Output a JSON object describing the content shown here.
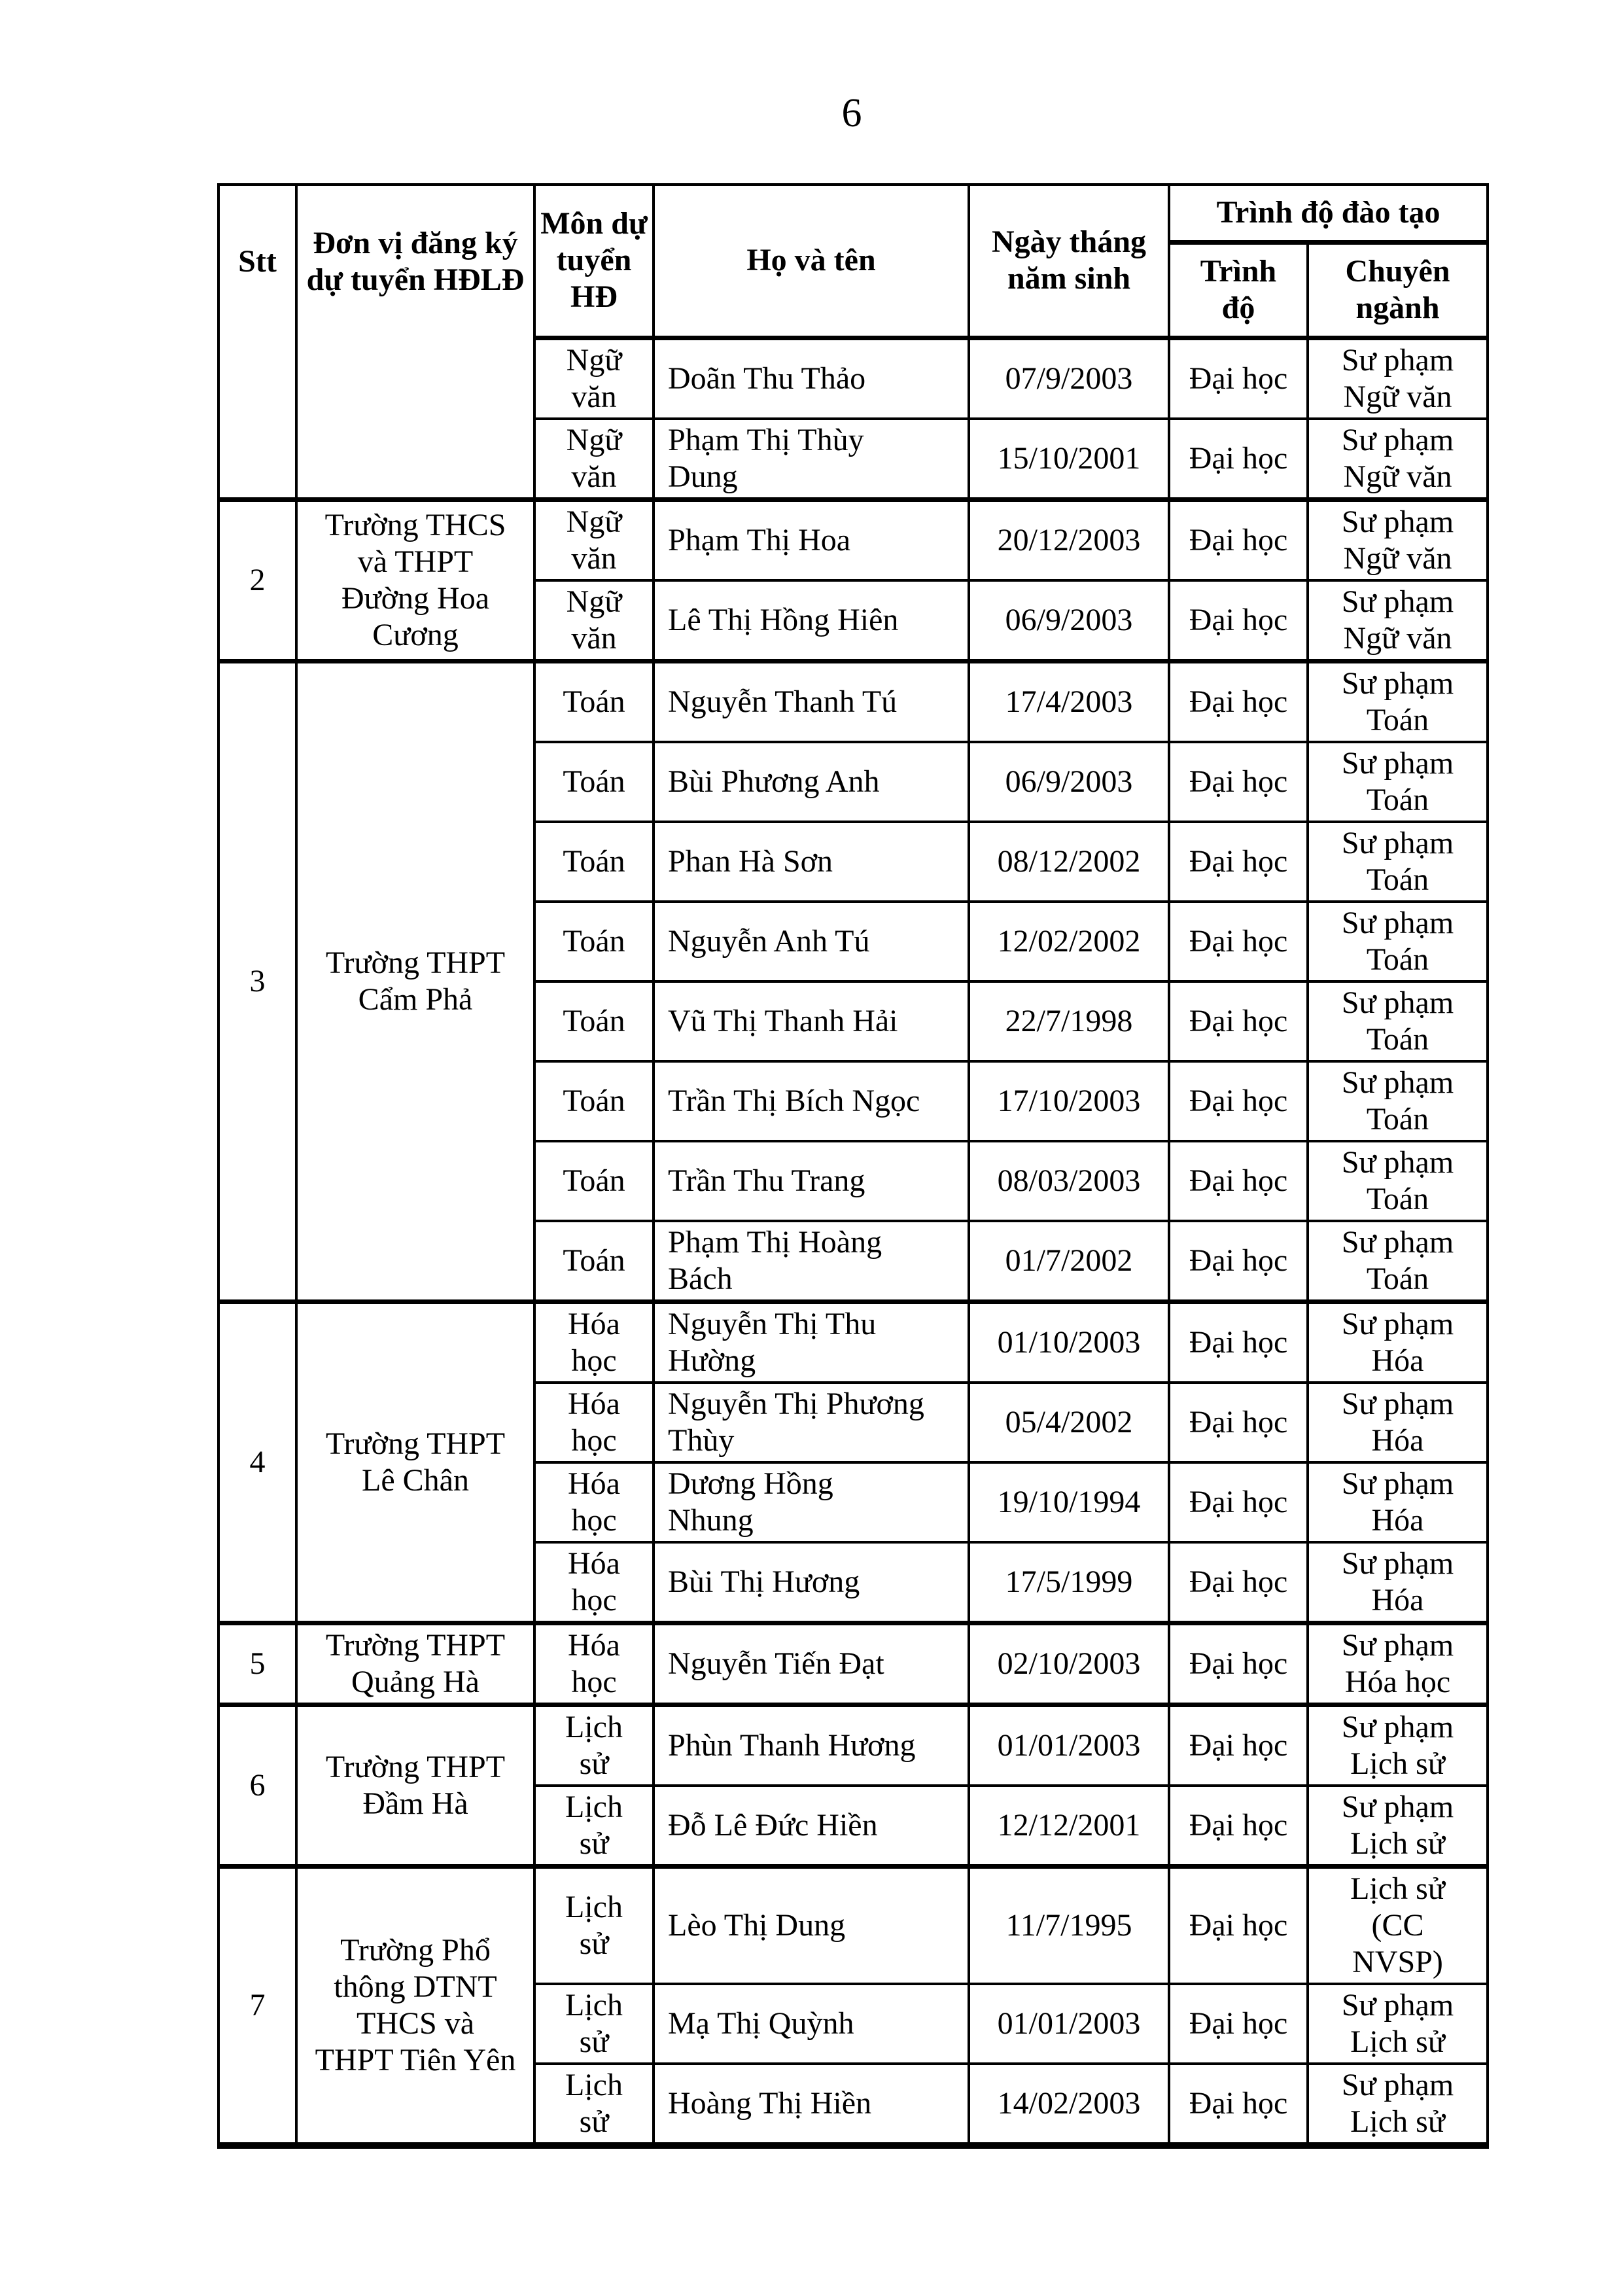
{
  "page": {
    "number": "6"
  },
  "table": {
    "headers": {
      "stt": "Stt",
      "unit": "Đơn vị đăng ký dự tuyển HĐLĐ",
      "subject": "Môn dự tuyển HĐ",
      "name": "Họ và tên",
      "dob": "Ngày tháng năm sinh",
      "training": "Trình độ đào tạo",
      "level": "Trình độ",
      "major": "Chuyên ngành"
    },
    "groups": [
      {
        "stt": "",
        "unit": "",
        "rows": [
          {
            "subject": "Ngữ văn",
            "name": "Doãn Thu Thảo",
            "dob": "07/9/2003",
            "level": "Đại học",
            "major": "Sư phạm Ngữ văn"
          },
          {
            "subject": "Ngữ văn",
            "name": "Phạm Thị Thùy Dung",
            "dob": "15/10/2001",
            "level": "Đại học",
            "major": "Sư phạm Ngữ văn"
          }
        ]
      },
      {
        "stt": "2",
        "unit": "Trường THCS và THPT Đường Hoa Cương",
        "rows": [
          {
            "subject": "Ngữ văn",
            "name": "Phạm Thị Hoa",
            "dob": "20/12/2003",
            "level": "Đại học",
            "major": "Sư phạm Ngữ văn"
          },
          {
            "subject": "Ngữ văn",
            "name": "Lê Thị Hồng Hiên",
            "dob": "06/9/2003",
            "level": "Đại học",
            "major": "Sư phạm Ngữ văn"
          }
        ]
      },
      {
        "stt": "3",
        "unit": "Trường THPT Cẩm Phả",
        "rows": [
          {
            "subject": "Toán",
            "name": "Nguyễn Thanh Tú",
            "dob": "17/4/2003",
            "level": "Đại học",
            "major": "Sư phạm Toán"
          },
          {
            "subject": "Toán",
            "name": "Bùi Phương Anh",
            "dob": "06/9/2003",
            "level": "Đại học",
            "major": "Sư phạm Toán"
          },
          {
            "subject": "Toán",
            "name": "Phan Hà Sơn",
            "dob": "08/12/2002",
            "level": "Đại học",
            "major": "Sư phạm Toán"
          },
          {
            "subject": "Toán",
            "name": "Nguyễn Anh Tú",
            "dob": "12/02/2002",
            "level": "Đại học",
            "major": "Sư phạm Toán"
          },
          {
            "subject": "Toán",
            "name": "Vũ Thị Thanh Hải",
            "dob": "22/7/1998",
            "level": "Đại học",
            "major": "Sư phạm Toán"
          },
          {
            "subject": "Toán",
            "name": "Trần Thị Bích Ngọc",
            "dob": "17/10/2003",
            "level": "Đại học",
            "major": "Sư phạm Toán"
          },
          {
            "subject": "Toán",
            "name": "Trần Thu Trang",
            "dob": "08/03/2003",
            "level": "Đại học",
            "major": "Sư phạm Toán"
          },
          {
            "subject": "Toán",
            "name": "Phạm Thị Hoàng Bách",
            "dob": "01/7/2002",
            "level": "Đại học",
            "major": "Sư phạm Toán"
          }
        ]
      },
      {
        "stt": "4",
        "unit": "Trường THPT Lê Chân",
        "rows": [
          {
            "subject": "Hóa học",
            "name": "Nguyễn Thị Thu Hường",
            "dob": "01/10/2003",
            "level": "Đại học",
            "major": "Sư phạm Hóa"
          },
          {
            "subject": "Hóa học",
            "name": "Nguyễn Thị Phương Thùy",
            "dob": "05/4/2002",
            "level": "Đại học",
            "major": "Sư phạm Hóa"
          },
          {
            "subject": "Hóa học",
            "name": "Dương Hồng Nhung",
            "dob": "19/10/1994",
            "level": "Đại học",
            "major": "Sư phạm Hóa"
          },
          {
            "subject": "Hóa học",
            "name": "Bùi Thị Hương",
            "dob": "17/5/1999",
            "level": "Đại học",
            "major": "Sư phạm Hóa"
          }
        ]
      },
      {
        "stt": "5",
        "unit": "Trường THPT Quảng Hà",
        "rows": [
          {
            "subject": "Hóa học",
            "name": "Nguyễn Tiến Đạt",
            "dob": "02/10/2003",
            "level": "Đại học",
            "major": "Sư phạm Hóa học"
          }
        ]
      },
      {
        "stt": "6",
        "unit": "Trường THPT Đầm Hà",
        "rows": [
          {
            "subject": "Lịch sử",
            "name": "Phùn Thanh Hương",
            "dob": "01/01/2003",
            "level": "Đại học",
            "major": "Sư phạm Lịch sử"
          },
          {
            "subject": "Lịch sử",
            "name": "Đỗ Lê Đức Hiền",
            "dob": "12/12/2001",
            "level": "Đại học",
            "major": "Sư phạm Lịch sử"
          }
        ]
      },
      {
        "stt": "7",
        "unit": "Trường Phổ thông DTNT THCS và THPT Tiên Yên",
        "rows": [
          {
            "subject": "Lịch sử",
            "name": "Lèo Thị Dung",
            "dob": "11/7/1995",
            "level": "Đại học",
            "major": "Lịch sử (CC NVSP)"
          },
          {
            "subject": "Lịch sử",
            "name": "Mạ Thị Quỳnh",
            "dob": "01/01/2003",
            "level": "Đại học",
            "major": "Sư phạm Lịch sử"
          },
          {
            "subject": "Lịch sử",
            "name": "Hoàng Thị Hiền",
            "dob": "14/02/2003",
            "level": "Đại học",
            "major": "Sư phạm Lịch sử"
          }
        ]
      }
    ]
  }
}
